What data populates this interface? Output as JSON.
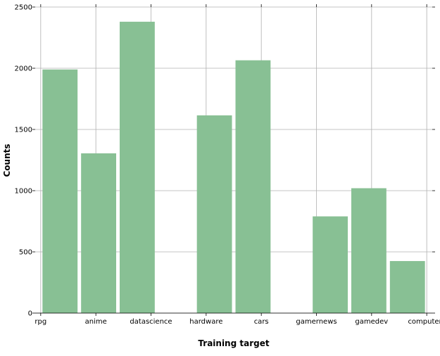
{
  "chart_data": {
    "type": "histogram",
    "xlabel": "Training target",
    "ylabel": "Counts",
    "x_tick_labels": [
      "rpg",
      "anime",
      "datascience",
      "hardware",
      "cars",
      "gamernews",
      "gamedev",
      "computers"
    ],
    "y_tick_labels": [
      "0",
      "500",
      "1000",
      "1500",
      "2000",
      "2500"
    ],
    "ylim": [
      0,
      2500
    ],
    "xlim": [
      -0.1,
      7.1
    ],
    "grid": true,
    "bar_color": "#88c094",
    "bins": [
      {
        "from": 0.0,
        "to": 0.7,
        "value": 1990
      },
      {
        "from": 0.7,
        "to": 1.4,
        "value": 1305
      },
      {
        "from": 1.4,
        "to": 2.1,
        "value": 2380
      },
      {
        "from": 2.1,
        "to": 2.8,
        "value": 0
      },
      {
        "from": 2.8,
        "to": 3.5,
        "value": 1615
      },
      {
        "from": 3.5,
        "to": 4.2,
        "value": 2065
      },
      {
        "from": 4.2,
        "to": 4.9,
        "value": 0
      },
      {
        "from": 4.9,
        "to": 5.6,
        "value": 790
      },
      {
        "from": 5.6,
        "to": 6.3,
        "value": 1020
      },
      {
        "from": 6.3,
        "to": 7.0,
        "value": 425
      }
    ]
  }
}
